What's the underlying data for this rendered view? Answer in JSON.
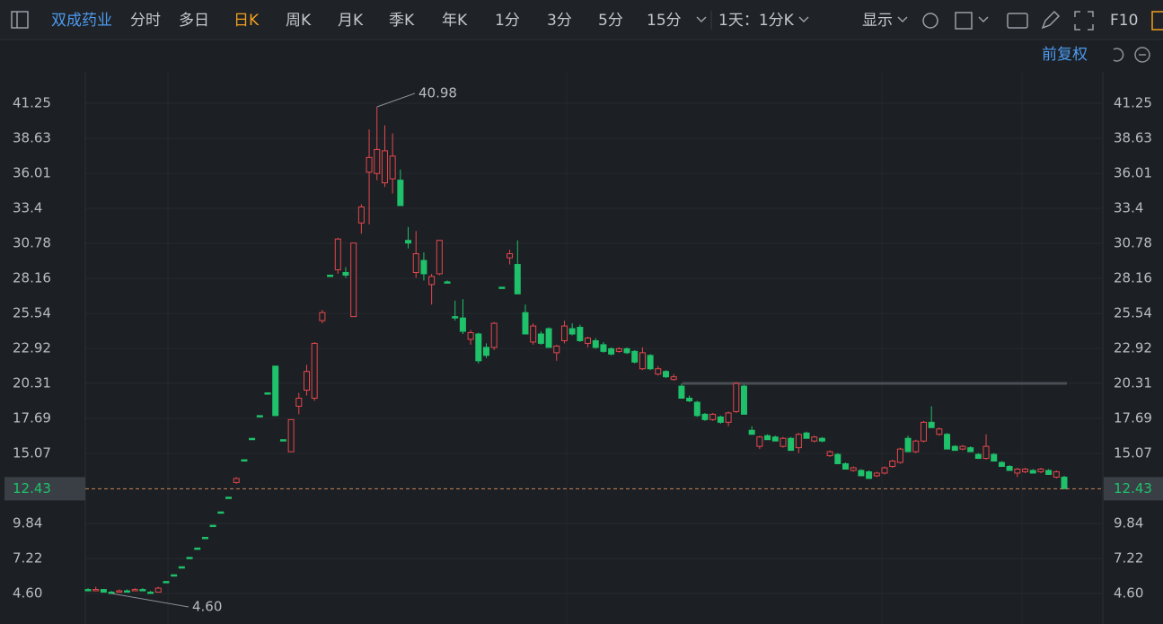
{
  "toolbar": {
    "stock": "双成药业",
    "tabs": [
      "分时",
      "多日",
      "日K",
      "周K",
      "月K",
      "季K",
      "年K",
      "1分",
      "3分",
      "5分",
      "15分"
    ],
    "period": "1天：1分K",
    "display": "显示",
    "f10": "F10",
    "adjust": "前复权"
  },
  "chart_data": {
    "type": "candlestick",
    "categories": [
      null,
      null,
      null,
      null,
      null,
      null,
      null,
      null,
      null,
      null,
      null,
      null,
      null,
      null,
      null,
      null,
      null,
      null,
      null,
      null,
      null,
      null,
      null,
      null,
      null,
      null,
      null,
      null,
      null,
      null,
      null,
      null,
      null,
      null,
      null,
      null,
      null,
      null,
      null,
      null,
      null,
      null,
      null,
      null,
      null,
      null,
      null,
      null,
      null,
      null,
      null,
      null,
      null,
      null,
      null,
      null,
      null,
      null,
      null,
      null,
      null,
      null,
      null,
      null,
      null,
      null,
      null,
      null,
      null,
      null,
      null,
      null,
      null,
      null,
      null,
      null,
      null,
      null,
      null,
      null,
      null,
      null,
      null,
      null,
      null,
      null,
      null,
      null,
      null,
      null,
      null,
      null,
      null,
      null,
      null,
      null,
      null,
      null,
      null,
      null,
      null,
      null,
      null,
      null,
      null,
      null,
      null,
      null,
      null,
      null,
      null,
      null,
      null,
      null,
      null,
      null,
      null,
      null,
      null,
      null,
      null,
      null,
      null,
      null,
      null,
      null
    ],
    "open": [
      4.9,
      4.8,
      4.9,
      4.7,
      4.7,
      4.8,
      4.8,
      4.9,
      4.7,
      4.7,
      5.5,
      6.0,
      6.6,
      7.3,
      8.0,
      8.8,
      9.7,
      10.7,
      11.8,
      12.9,
      14.6,
      16.2,
      17.9,
      19.6,
      21.6,
      16.1,
      15.2,
      18.6,
      19.8,
      19.2,
      25.0,
      28.4,
      28.8,
      28.6,
      25.3,
      32.3,
      36.1,
      36.0,
      35.3,
      35.6,
      35.5,
      31.0,
      28.6,
      29.5,
      27.7,
      28.5,
      27.9,
      25.3,
      25.2,
      23.6,
      24.0,
      23.0,
      23.0,
      27.5,
      29.7,
      29.2,
      25.6,
      23.4,
      24.0,
      24.4,
      22.6,
      23.5,
      24.4,
      24.5,
      23.3,
      23.5,
      23.2,
      22.9,
      22.7,
      22.9,
      22.7,
      21.4,
      22.4,
      21.0,
      21.2,
      20.6,
      20.1,
      19.2,
      18.9,
      18.0,
      17.6,
      17.8,
      17.4,
      18.2,
      20.1,
      16.8,
      15.6,
      16.4,
      16.3,
      15.6,
      16.2,
      15.5,
      16.6,
      16.0,
      16.2,
      14.9,
      15.0,
      14.3,
      13.8,
      13.8,
      13.7,
      13.4,
      13.6,
      14.1,
      14.4,
      16.2,
      15.2,
      16.0,
      17.4,
      16.5,
      16.5,
      15.6,
      15.4,
      15.5,
      15.0,
      14.7,
      15.0,
      14.4,
      14.1,
      13.6,
      13.7,
      13.8,
      13.7,
      13.8,
      13.3,
      13.3
    ],
    "high": [
      5.0,
      5.1,
      4.9,
      4.8,
      4.9,
      4.9,
      5.0,
      5.0,
      4.8,
      5.1,
      5.5,
      6.0,
      6.6,
      7.3,
      8.0,
      8.8,
      9.7,
      10.7,
      11.8,
      13.3,
      14.6,
      16.2,
      17.9,
      19.6,
      21.6,
      16.1,
      17.6,
      19.6,
      21.7,
      23.4,
      25.8,
      28.4,
      31.2,
      29.0,
      30.8,
      33.7,
      39.3,
      40.98,
      39.6,
      39.0,
      36.3,
      32.0,
      31.7,
      30.1,
      28.5,
      31.0,
      28.0,
      26.5,
      26.6,
      24.3,
      24.1,
      23.3,
      24.9,
      27.5,
      30.3,
      31.0,
      26.2,
      24.8,
      24.2,
      24.5,
      23.2,
      25.0,
      24.8,
      24.7,
      23.8,
      23.7,
      23.4,
      23.0,
      23.0,
      23.0,
      22.8,
      23.0,
      22.5,
      21.6,
      21.3,
      21.0,
      20.3,
      19.4,
      19.0,
      18.1,
      18.1,
      17.9,
      18.2,
      20.4,
      20.2,
      17.1,
      16.4,
      16.5,
      16.4,
      16.3,
      16.3,
      16.6,
      16.7,
      16.4,
      16.3,
      15.3,
      15.1,
      14.4,
      14.1,
      13.9,
      13.8,
      13.7,
      14.1,
      14.6,
      15.5,
      16.4,
      16.1,
      17.5,
      18.6,
      17.0,
      16.6,
      15.7,
      15.7,
      15.6,
      15.1,
      16.5,
      15.1,
      14.5,
      14.2,
      14.0,
      14.0,
      13.9,
      14.0,
      13.9,
      13.8,
      13.4
    ],
    "low": [
      4.8,
      4.8,
      4.7,
      4.6,
      4.7,
      4.7,
      4.8,
      4.8,
      4.6,
      4.7,
      5.5,
      6.0,
      6.6,
      7.3,
      8.0,
      8.8,
      9.7,
      10.7,
      11.8,
      12.8,
      14.6,
      16.2,
      17.9,
      19.6,
      17.9,
      16.1,
      15.2,
      18.0,
      19.4,
      19.0,
      24.8,
      28.4,
      28.5,
      28.2,
      25.3,
      31.5,
      32.2,
      35.5,
      35.0,
      34.5,
      33.6,
      30.4,
      28.2,
      28.0,
      26.2,
      28.4,
      27.8,
      25.0,
      24.0,
      23.2,
      21.8,
      22.2,
      22.8,
      27.5,
      29.2,
      27.0,
      24.0,
      23.2,
      23.2,
      23.0,
      22.0,
      23.3,
      23.9,
      23.4,
      23.0,
      22.9,
      22.6,
      22.4,
      22.6,
      22.5,
      21.8,
      21.3,
      21.3,
      20.9,
      20.7,
      20.5,
      19.2,
      18.9,
      17.8,
      17.5,
      17.5,
      17.3,
      17.1,
      18.1,
      18.0,
      16.5,
      15.4,
      16.1,
      16.0,
      15.5,
      15.3,
      15.1,
      16.2,
      15.9,
      15.9,
      14.8,
      14.3,
      13.9,
      13.7,
      13.4,
      13.2,
      13.3,
      13.5,
      14.0,
      14.3,
      15.2,
      15.1,
      15.9,
      17.0,
      16.4,
      15.4,
      15.3,
      15.3,
      15.2,
      14.7,
      14.6,
      14.5,
      14.1,
      13.8,
      13.3,
      13.6,
      13.6,
      13.6,
      13.5,
      13.2,
      12.43
    ],
    "close": [
      4.8,
      4.9,
      4.7,
      4.7,
      4.8,
      4.8,
      4.9,
      4.8,
      4.7,
      5.0,
      5.5,
      6.0,
      6.6,
      7.3,
      8.0,
      8.8,
      9.7,
      10.7,
      11.8,
      13.2,
      14.6,
      16.2,
      17.9,
      19.6,
      17.9,
      16.1,
      17.6,
      19.2,
      21.2,
      23.3,
      25.6,
      28.4,
      31.1,
      28.4,
      30.8,
      33.5,
      37.2,
      37.8,
      37.7,
      37.3,
      33.6,
      30.8,
      30.0,
      28.5,
      28.3,
      31.0,
      27.9,
      25.2,
      24.2,
      24.1,
      22.0,
      22.4,
      24.8,
      27.5,
      30.0,
      27.0,
      24.0,
      24.6,
      23.3,
      23.0,
      23.1,
      24.6,
      24.0,
      23.5,
      23.7,
      23.0,
      22.7,
      22.5,
      22.9,
      22.6,
      21.9,
      22.6,
      21.4,
      21.4,
      20.8,
      20.8,
      19.2,
      19.0,
      17.9,
      17.6,
      18.0,
      17.4,
      18.1,
      20.3,
      18.0,
      16.5,
      16.3,
      16.1,
      16.0,
      16.2,
      15.3,
      16.5,
      16.2,
      16.3,
      16.0,
      15.2,
      14.3,
      13.9,
      14.0,
      13.4,
      13.2,
      13.6,
      14.0,
      14.5,
      15.4,
      15.2,
      16.0,
      17.4,
      17.0,
      16.9,
      15.4,
      15.3,
      15.6,
      15.2,
      14.7,
      15.6,
      14.5,
      14.1,
      13.8,
      13.9,
      13.9,
      13.6,
      13.9,
      13.5,
      13.7,
      12.43
    ],
    "up_color": "#e5484d",
    "down_color": "#1fc16b",
    "ylim": [
      2.32,
      43.6
    ],
    "yticks": [
      {
        "value": 4.6,
        "label": "4.60"
      },
      7.22,
      9.84,
      15.07,
      17.69,
      20.31,
      22.92,
      25.54,
      28.16,
      30.78,
      33.4,
      36.01,
      38.63,
      41.25
    ],
    "last_price": 12.43,
    "drawn_line": 20.31,
    "max_label": 40.98,
    "min_label": {
      "value": 4.6,
      "label": "4.60"
    },
    "grid": true
  }
}
